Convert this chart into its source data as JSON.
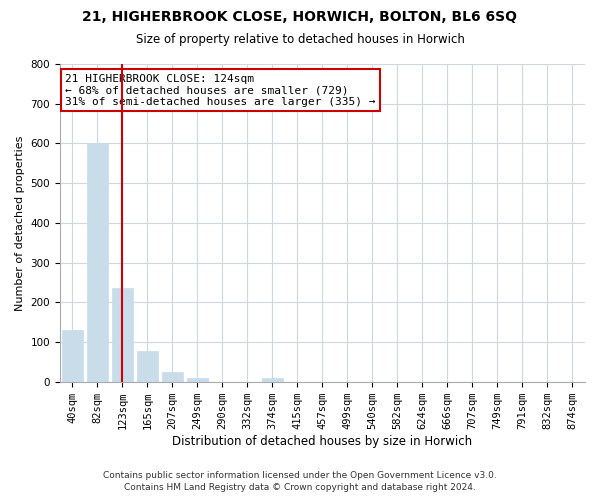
{
  "title": "21, HIGHERBROOK CLOSE, HORWICH, BOLTON, BL6 6SQ",
  "subtitle": "Size of property relative to detached houses in Horwich",
  "xlabel": "Distribution of detached houses by size in Horwich",
  "ylabel": "Number of detached properties",
  "bar_labels": [
    "40sqm",
    "82sqm",
    "123sqm",
    "165sqm",
    "207sqm",
    "249sqm",
    "290sqm",
    "332sqm",
    "374sqm",
    "415sqm",
    "457sqm",
    "499sqm",
    "540sqm",
    "582sqm",
    "624sqm",
    "666sqm",
    "707sqm",
    "749sqm",
    "791sqm",
    "832sqm",
    "874sqm"
  ],
  "bar_heights": [
    130,
    600,
    235,
    78,
    25,
    10,
    0,
    0,
    10,
    0,
    0,
    0,
    0,
    0,
    0,
    0,
    0,
    0,
    0,
    0,
    0
  ],
  "bar_color": "#c8dcea",
  "red_line_x": 2.5,
  "red_line_color": "#cc0000",
  "ylim": [
    0,
    800
  ],
  "yticks": [
    0,
    100,
    200,
    300,
    400,
    500,
    600,
    700,
    800
  ],
  "annotation_line1": "21 HIGHERBROOK CLOSE: 124sqm",
  "annotation_line2": "← 68% of detached houses are smaller (729)",
  "annotation_line3": "31% of semi-detached houses are larger (335) →",
  "footer1": "Contains HM Land Registry data © Crown copyright and database right 2024.",
  "footer2": "Contains public sector information licensed under the Open Government Licence v3.0.",
  "bg_color": "#ffffff",
  "grid_color": "#cdd8e3",
  "title_fontsize": 10,
  "subtitle_fontsize": 8.5,
  "annotation_fontsize": 8,
  "xlabel_fontsize": 8.5,
  "ylabel_fontsize": 8,
  "tick_fontsize": 7.5,
  "footer_fontsize": 6.5
}
